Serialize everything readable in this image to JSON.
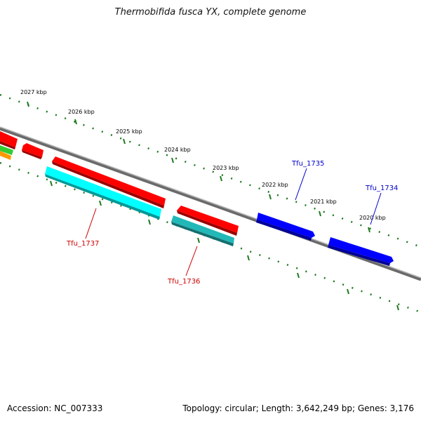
{
  "title": "Thermobifida fusca YX, complete genome",
  "footer": {
    "accession": "Accession: NC_007333",
    "summary": "Topology: circular; Length: 3,642,249 bp; Genes: 3,176"
  },
  "colors": {
    "backbone": "#808080",
    "tick": "#1e7a1e",
    "gene_label_red": "#cc0000",
    "gene_label_blue": "#0000cc",
    "red": "#ff0000",
    "cyan": "#00ffff",
    "teal": "#22b8b8",
    "blue": "#0000ff",
    "green": "#33cc33",
    "orange": "#ff9900"
  },
  "kbp_labels": [
    "2027 kbp",
    "2026 kbp",
    "2025 kbp",
    "2024 kbp",
    "2023 kbp",
    "2022 kbp",
    "2021 kbp",
    "2020 kbp"
  ],
  "gene_labels": [
    {
      "text": "Tfu_1737",
      "color": "red"
    },
    {
      "text": "Tfu_1736",
      "color": "red"
    },
    {
      "text": "Tfu_1735",
      "color": "blue"
    },
    {
      "text": "Tfu_1734",
      "color": "blue"
    }
  ]
}
